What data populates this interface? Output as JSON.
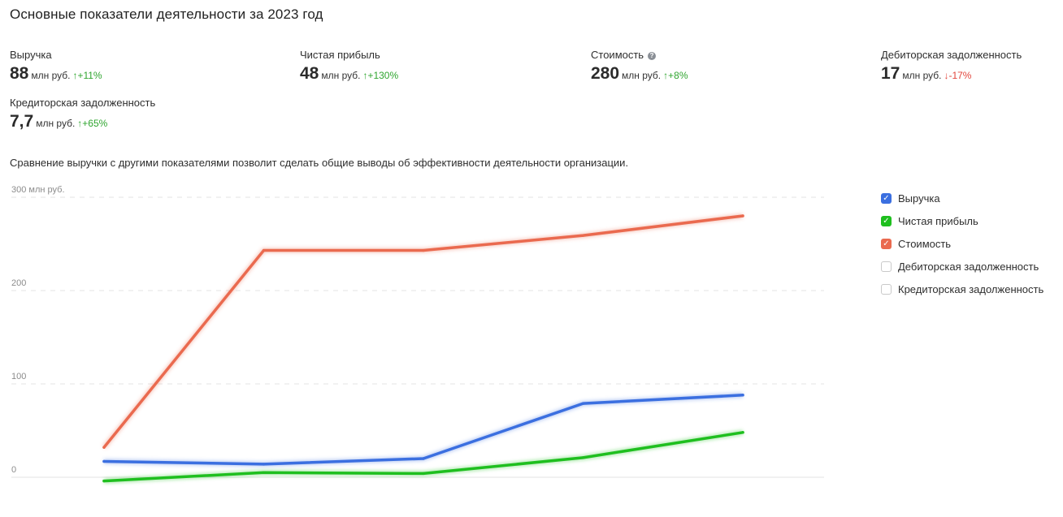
{
  "page": {
    "title": "Основные показатели деятельности за 2023 год",
    "description": "Сравнение выручки с другими показателями позволит сделать общие выводы об эффективности деятельности организации."
  },
  "kpis": [
    {
      "label": "Выручка",
      "value": "88",
      "unit": "млн руб.",
      "arrow": "↑",
      "change": "+11%",
      "direction": "up",
      "info": false
    },
    {
      "label": "Чистая прибыль",
      "value": "48",
      "unit": "млн руб.",
      "arrow": "↑",
      "change": "+130%",
      "direction": "up",
      "info": false
    },
    {
      "label": "Стоимость",
      "value": "280",
      "unit": "млн руб.",
      "arrow": "↑",
      "change": "+8%",
      "direction": "up",
      "info": true
    },
    {
      "label": "Дебиторская задолженность",
      "value": "17",
      "unit": "млн руб.",
      "arrow": "↓",
      "change": "-17%",
      "direction": "down",
      "info": false
    },
    {
      "label": "Кредиторская задолженность",
      "value": "7,7",
      "unit": "млн руб.",
      "arrow": "↑",
      "change": "+65%",
      "direction": "up",
      "info": false
    }
  ],
  "colors": {
    "up": "#2fa52f",
    "down": "#e2453c",
    "grid": "#e3e3e3",
    "axis_text": "#8c8c8c"
  },
  "legend": [
    {
      "label": "Выручка",
      "checked": true,
      "color": "#3b6fe0"
    },
    {
      "label": "Чистая прибыль",
      "checked": true,
      "color": "#1fbf1f"
    },
    {
      "label": "Стоимость",
      "checked": true,
      "color": "#ea6a4f"
    },
    {
      "label": "Дебиторская задолженность",
      "checked": false,
      "color": "#c9c9c9"
    },
    {
      "label": "Кредиторская задолженность",
      "checked": false,
      "color": "#c9c9c9"
    }
  ],
  "chart_data": {
    "type": "line",
    "y_ticks": [
      {
        "value": 0,
        "label": "0"
      },
      {
        "value": 100,
        "label": "100"
      },
      {
        "value": 200,
        "label": "200"
      },
      {
        "value": 300,
        "label": "300 млн руб."
      }
    ],
    "ylim": [
      0,
      300
    ],
    "grid": true,
    "legend_position": "right",
    "series": [
      {
        "name": "Стоимость",
        "color": "#ea6a4f",
        "values": [
          32,
          243,
          243,
          259,
          280
        ]
      },
      {
        "name": "Выручка",
        "color": "#3b6fe0",
        "values": [
          17,
          14,
          20,
          79,
          88
        ]
      },
      {
        "name": "Чистая прибыль",
        "color": "#1fbf1f",
        "values": [
          -4,
          5,
          4,
          21,
          48
        ]
      }
    ]
  }
}
